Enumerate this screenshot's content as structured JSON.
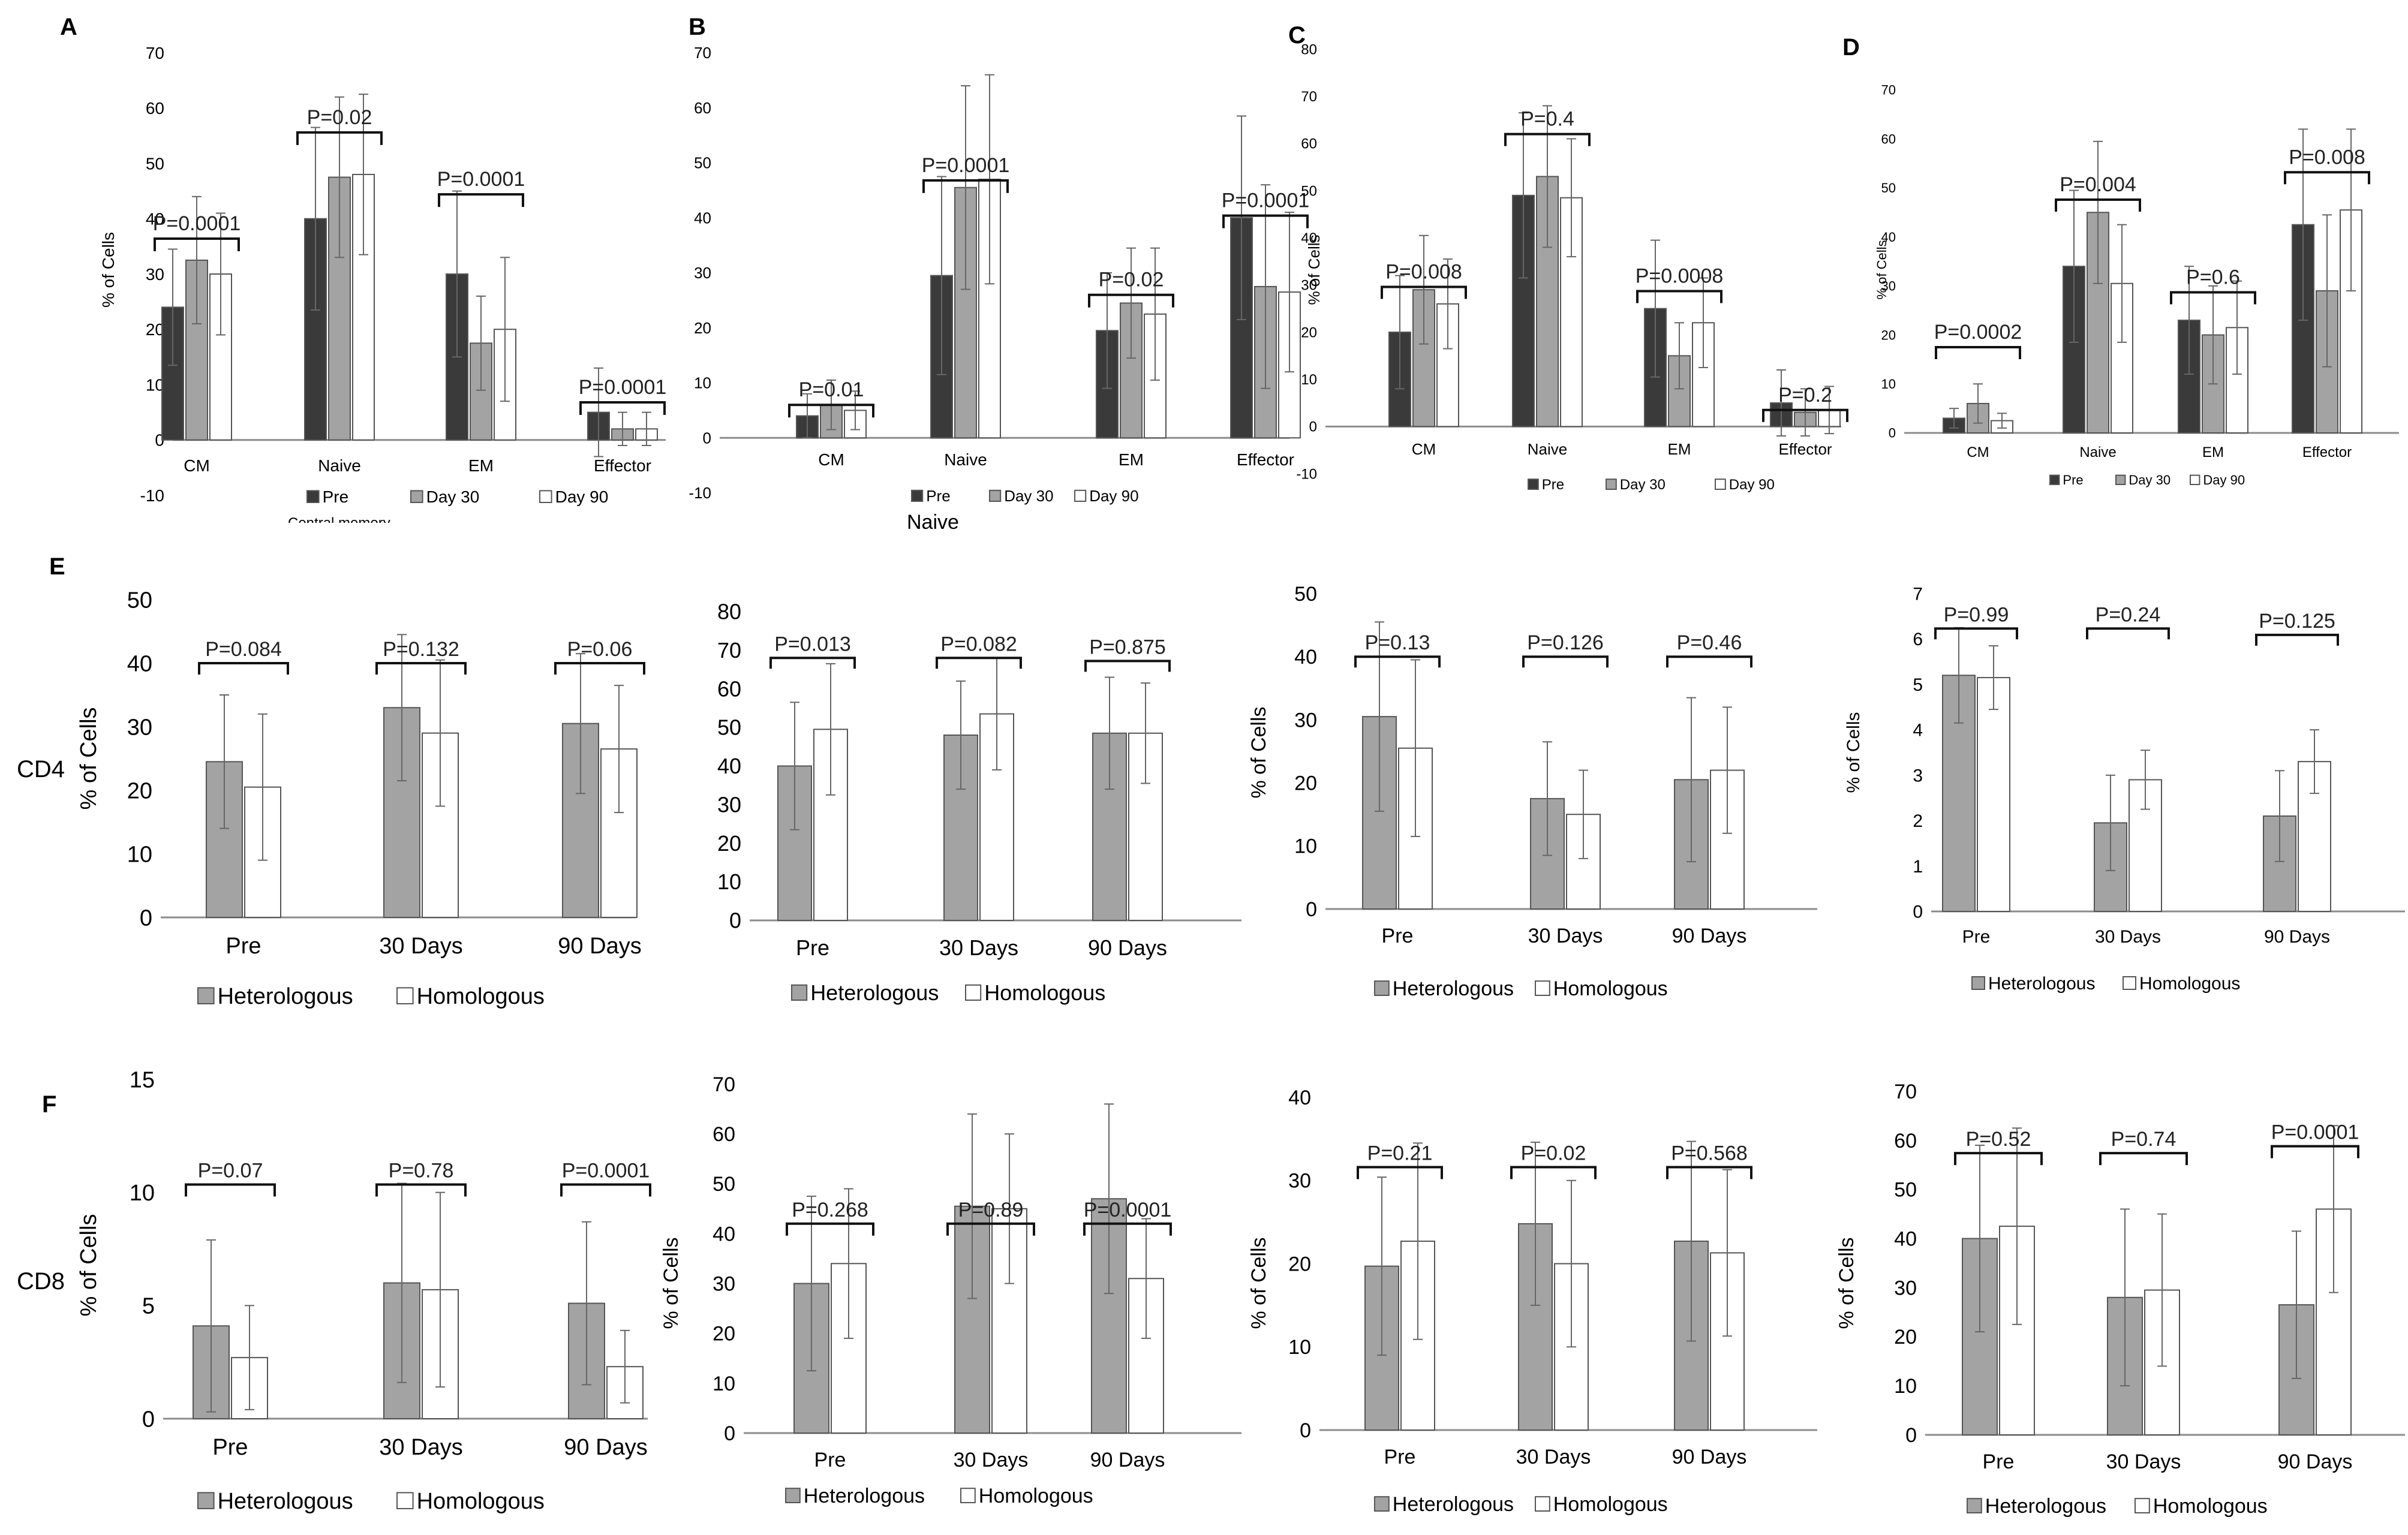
{
  "figure": {
    "row_labels": {
      "E": "CD4",
      "F": "CD8"
    },
    "panel_letters": [
      "A",
      "B",
      "C",
      "D",
      "E",
      "F"
    ],
    "stray_text": {
      "a_caption": "Central memory",
      "b_caption": "Naive"
    }
  },
  "colors": {
    "pre": "#3a3a3a",
    "day30": "#a3a3a3",
    "day90": "#ffffff",
    "heterologous": "#a3a3a3",
    "homologous": "#ffffff",
    "axis": "#8c8c8c",
    "error": "#666666"
  },
  "chart_data": [
    {
      "id": "A",
      "type": "bar",
      "ylabel": "% of Cells",
      "ylim": [
        -10,
        70
      ],
      "yticks": [
        -10,
        0,
        10,
        20,
        30,
        40,
        50,
        60,
        70
      ],
      "categories": [
        "CM",
        "Naive",
        "EM",
        "Effector"
      ],
      "series": [
        {
          "name": "Pre",
          "values": [
            24,
            40,
            30,
            5
          ],
          "errors": [
            10.5,
            16.5,
            15,
            8
          ]
        },
        {
          "name": "Day 30",
          "values": [
            32.5,
            47.5,
            17.5,
            2
          ],
          "errors": [
            11.5,
            14.5,
            8.5,
            3
          ]
        },
        {
          "name": "Day 90",
          "values": [
            30,
            48,
            20,
            2
          ],
          "errors": [
            11,
            14.5,
            13,
            3
          ]
        }
      ],
      "pvalues": [
        "P=0.0001",
        "P=0.02",
        "P=0.0001",
        "P=0.0001"
      ]
    },
    {
      "id": "B",
      "type": "bar",
      "ylabel": "",
      "ylim": [
        -10,
        70
      ],
      "yticks": [
        -10,
        0,
        10,
        20,
        30,
        40,
        50,
        60,
        70
      ],
      "categories": [
        "CM",
        "Naive",
        "EM",
        "Effector"
      ],
      "series": [
        {
          "name": "Pre",
          "values": [
            4,
            29.5,
            19.5,
            40
          ],
          "errors": [
            4,
            18,
            10.5,
            18.5
          ]
        },
        {
          "name": "Day 30",
          "values": [
            6,
            45.5,
            24.5,
            27.5
          ],
          "errors": [
            4.5,
            18.5,
            10,
            18.5
          ]
        },
        {
          "name": "Day 90",
          "values": [
            5,
            47,
            22.5,
            26.5
          ],
          "errors": [
            3.5,
            19,
            12,
            14.5
          ]
        }
      ],
      "pvalues": [
        "P=0.01",
        "P=0.0001",
        "P=0.02",
        "P=0.0001"
      ]
    },
    {
      "id": "C",
      "type": "bar",
      "ylabel": "% of Cells",
      "ylim": [
        -10,
        80
      ],
      "yticks": [
        -10,
        0,
        10,
        20,
        30,
        40,
        50,
        60,
        70,
        80
      ],
      "categories": [
        "CM",
        "Naive",
        "EM",
        "Effector"
      ],
      "series": [
        {
          "name": "Pre",
          "values": [
            20,
            49,
            25,
            5
          ],
          "errors": [
            12,
            17.5,
            14.5,
            7
          ]
        },
        {
          "name": "Day 30",
          "values": [
            29,
            53,
            15,
            3
          ],
          "errors": [
            11.5,
            15,
            7,
            5
          ]
        },
        {
          "name": "Day 90",
          "values": [
            26,
            48.5,
            22,
            3.5
          ],
          "errors": [
            9.5,
            12.5,
            9.5,
            5
          ]
        }
      ],
      "pvalues": [
        "P=0.008",
        "P=0.4",
        "P=0.0008",
        "P=0.2"
      ]
    },
    {
      "id": "D",
      "type": "bar",
      "ylabel": "% of Cells",
      "ylim": [
        0,
        70
      ],
      "yticks": [
        0,
        10,
        20,
        30,
        40,
        50,
        60,
        70
      ],
      "categories": [
        "CM",
        "Naive",
        "EM",
        "Effector"
      ],
      "series": [
        {
          "name": "Pre",
          "values": [
            3,
            34,
            23,
            42.5
          ],
          "errors": [
            2,
            15.5,
            11,
            19.5
          ]
        },
        {
          "name": "Day 30",
          "values": [
            6,
            45,
            20,
            29
          ],
          "errors": [
            4,
            14.5,
            10,
            15.5
          ]
        },
        {
          "name": "Day 90",
          "values": [
            2.5,
            30.5,
            21.5,
            45.5
          ],
          "errors": [
            1.5,
            12,
            9.5,
            16.5
          ]
        }
      ],
      "pvalues": [
        "P=0.0002",
        "P=0.004",
        "P=0.6",
        "P=0.008"
      ]
    },
    {
      "id": "E1",
      "type": "bar",
      "ylabel": "% of Cells",
      "ylim": [
        0,
        50
      ],
      "yticks": [
        0,
        10,
        20,
        30,
        40,
        50
      ],
      "categories": [
        "Pre",
        "30 Days",
        "90 Days"
      ],
      "series": [
        {
          "name": "Heterologous",
          "values": [
            24.5,
            33,
            30.5
          ],
          "errors": [
            10.5,
            11.5,
            11
          ]
        },
        {
          "name": "Homologous",
          "values": [
            20.5,
            29,
            26.5
          ],
          "errors": [
            11.5,
            11.5,
            10
          ]
        }
      ],
      "pvalues": [
        "P=0.084",
        "P=0.132",
        "P=0.06"
      ]
    },
    {
      "id": "E2",
      "type": "bar",
      "ylabel": "",
      "ylim": [
        0,
        80
      ],
      "yticks": [
        0,
        10,
        20,
        30,
        40,
        50,
        60,
        70,
        80
      ],
      "categories": [
        "Pre",
        "30 Days",
        "90 Days"
      ],
      "series": [
        {
          "name": "Heterologous",
          "values": [
            40,
            48,
            48.5
          ],
          "errors": [
            16.5,
            14,
            14.5
          ]
        },
        {
          "name": "Homologous",
          "values": [
            49.5,
            53.5,
            48.5
          ],
          "errors": [
            17,
            14.5,
            13
          ]
        }
      ],
      "pvalues": [
        "P=0.013",
        "P=0.082",
        "P=0.875"
      ]
    },
    {
      "id": "E3",
      "type": "bar",
      "ylabel": "% of Cells",
      "ylim": [
        0,
        50
      ],
      "yticks": [
        0,
        10,
        20,
        30,
        40,
        50
      ],
      "categories": [
        "Pre",
        "30 Days",
        "90 Days"
      ],
      "series": [
        {
          "name": "Heterologous",
          "values": [
            30.5,
            17.5,
            20.5
          ],
          "errors": [
            15,
            9,
            13
          ]
        },
        {
          "name": "Homologous",
          "values": [
            25.5,
            15,
            22
          ],
          "errors": [
            14,
            7,
            10
          ]
        }
      ],
      "pvalues": [
        "P=0.13",
        "P=0.126",
        "P=0.46"
      ]
    },
    {
      "id": "E4",
      "type": "bar",
      "ylabel": "% of Cells",
      "ylim": [
        0,
        7
      ],
      "yticks": [
        0,
        1,
        2,
        3,
        4,
        5,
        6,
        7
      ],
      "categories": [
        "Pre",
        "30 Days",
        "90 Days"
      ],
      "series": [
        {
          "name": "Heterologous",
          "values": [
            5.2,
            1.95,
            2.1
          ],
          "errors": [
            1.05,
            1.05,
            1
          ]
        },
        {
          "name": "Homologous",
          "values": [
            5.15,
            2.9,
            3.3
          ],
          "errors": [
            0.7,
            0.65,
            0.7
          ]
        }
      ],
      "pvalues": [
        "P=0.99",
        "P=0.24",
        "P=0.125"
      ]
    },
    {
      "id": "F1",
      "type": "bar",
      "ylabel": "% of Cells",
      "ylim": [
        0,
        15
      ],
      "yticks": [
        0,
        5,
        10,
        15
      ],
      "categories": [
        "Pre",
        "30 Days",
        "90 Days"
      ],
      "series": [
        {
          "name": "Heterologous",
          "values": [
            4.1,
            6,
            5.1
          ],
          "errors": [
            3.8,
            4.4,
            3.6
          ]
        },
        {
          "name": "Homologous",
          "values": [
            2.7,
            5.7,
            2.3
          ],
          "errors": [
            2.3,
            4.3,
            1.6
          ]
        }
      ],
      "pvalues": [
        "P=0.07",
        "P=0.78",
        "P=0.0001"
      ]
    },
    {
      "id": "F2",
      "type": "bar",
      "ylabel": "% of Cells",
      "ylim": [
        0,
        70
      ],
      "yticks": [
        0,
        10,
        20,
        30,
        40,
        50,
        60,
        70
      ],
      "categories": [
        "Pre",
        "30 Days",
        "90 Days"
      ],
      "series": [
        {
          "name": "Heterologous",
          "values": [
            30,
            45.5,
            47
          ],
          "errors": [
            17.5,
            18.5,
            19
          ]
        },
        {
          "name": "Homologous",
          "values": [
            34,
            45,
            31
          ],
          "errors": [
            15,
            15,
            12
          ]
        }
      ],
      "pvalues": [
        "P=0.268",
        "P=0.89",
        "P=0.0001"
      ]
    },
    {
      "id": "F3",
      "type": "bar",
      "ylabel": "% of Cells",
      "ylim": [
        0,
        40
      ],
      "yticks": [
        0,
        10,
        20,
        30,
        40
      ],
      "categories": [
        "Pre",
        "30 Days",
        "90 Days"
      ],
      "series": [
        {
          "name": "Heterologous",
          "values": [
            19.7,
            24.8,
            22.7
          ],
          "errors": [
            10.7,
            9.8,
            12
          ]
        },
        {
          "name": "Homologous",
          "values": [
            22.7,
            20,
            21.3
          ],
          "errors": [
            11.8,
            10,
            10
          ]
        }
      ],
      "pvalues": [
        "P=0.21",
        "P=0.02",
        "P=0.568"
      ]
    },
    {
      "id": "F4",
      "type": "bar",
      "ylabel": "% of Cells",
      "ylim": [
        0,
        70
      ],
      "yticks": [
        0,
        10,
        20,
        30,
        40,
        50,
        60,
        70
      ],
      "categories": [
        "Pre",
        "30 Days",
        "90 Days"
      ],
      "series": [
        {
          "name": "Heterologous",
          "values": [
            40,
            28,
            26.5
          ],
          "errors": [
            19,
            18,
            15
          ]
        },
        {
          "name": "Homologous",
          "values": [
            42.5,
            29.5,
            46
          ],
          "errors": [
            20,
            15.5,
            17
          ]
        }
      ],
      "pvalues": [
        "P=0.52",
        "P=0.74",
        "P=0.0001"
      ]
    }
  ]
}
